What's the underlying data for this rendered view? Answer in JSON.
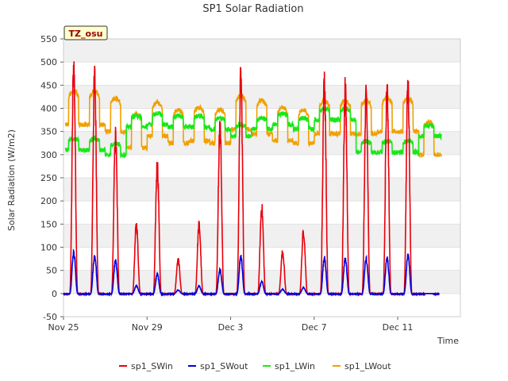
{
  "chart_data": {
    "type": "line",
    "title": "SP1 Solar Radiation",
    "xlabel": "Time",
    "ylabel": "Solar Radiation (W/m2)",
    "ylim": [
      -50,
      550
    ],
    "yticks": [
      -50,
      0,
      50,
      100,
      150,
      200,
      250,
      300,
      350,
      400,
      450,
      500,
      550
    ],
    "xlim": [
      "2023-11-25",
      "2023-12-14"
    ],
    "xticks": [
      {
        "label": "Nov 25",
        "day": 0
      },
      {
        "label": "Nov 29",
        "day": 4
      },
      {
        "label": "Dec 3",
        "day": 8
      },
      {
        "label": "Dec 7",
        "day": 12
      },
      {
        "label": "Dec 11",
        "day": 16
      }
    ],
    "grid": "horizontal bands",
    "legend_position": "bottom",
    "station_label": "TZ_osu",
    "daily_peaks_by_day": {
      "days": [
        "Nov 25",
        "Nov 26",
        "Nov 27",
        "Nov 28",
        "Nov 29",
        "Nov 30",
        "Dec 1",
        "Dec 2",
        "Dec 3",
        "Dec 4",
        "Dec 5",
        "Dec 6",
        "Dec 7",
        "Dec 8",
        "Dec 9",
        "Dec 10",
        "Dec 11",
        "Dec 12"
      ],
      "sp1_SWin": [
        530,
        505,
        365,
        160,
        300,
        78,
        160,
        395,
        505,
        200,
        97,
        145,
        495,
        475,
        455,
        475,
        485,
        0
      ],
      "sp1_SWout": [
        95,
        88,
        75,
        18,
        45,
        8,
        17,
        55,
        85,
        28,
        10,
        14,
        83,
        81,
        80,
        83,
        87,
        0
      ],
      "sp1_LWin": [
        330,
        330,
        320,
        380,
        385,
        380,
        380,
        375,
        360,
        375,
        385,
        375,
        395,
        395,
        325,
        325,
        325,
        360
      ],
      "sp1_LWout": [
        425,
        425,
        410,
        375,
        400,
        385,
        390,
        385,
        415,
        405,
        390,
        385,
        405,
        405,
        405,
        410,
        410,
        360
      ]
    },
    "series": [
      {
        "name": "sp1_SWin",
        "color": "#e8000b"
      },
      {
        "name": "sp1_SWout",
        "color": "#0000dd"
      },
      {
        "name": "sp1_LWin",
        "color": "#17e817"
      },
      {
        "name": "sp1_LWout",
        "color": "#f0a000"
      }
    ]
  }
}
